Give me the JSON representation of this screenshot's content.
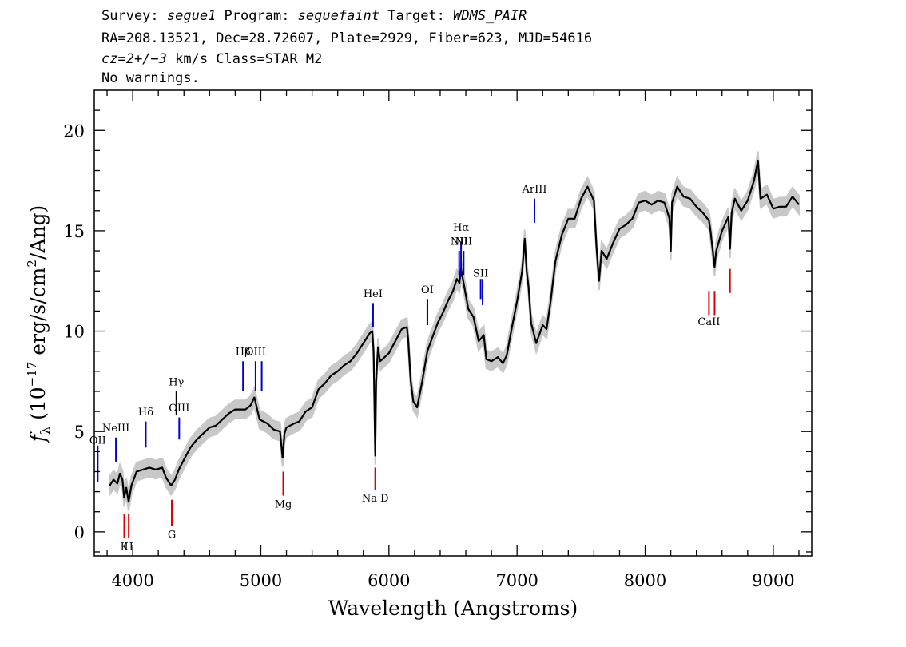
{
  "header": {
    "line1": {
      "survey_label": "Survey: ",
      "survey": "segue1",
      "program_label": " Program: ",
      "program": "seguefaint",
      "target_label": " Target: ",
      "target": "WDMS_PAIR"
    },
    "line2": "RA=208.13521, Dec=28.72607, Plate=2929, Fiber=623, MJD=54616",
    "line3": {
      "cz": "cz=2+/−3",
      "rest": " km/s Class=STAR M2"
    },
    "line4": "No warnings."
  },
  "chart_data": {
    "type": "line",
    "xlabel": "Wavelength (Angstroms)",
    "ylabel": {
      "f": "f",
      "sub": "λ",
      "p1": " (10",
      "exp1": "−17",
      "p2": " erg/s/cm",
      "exp2": "2",
      "p3": "/Ang)"
    },
    "xlim": [
      3700,
      9300
    ],
    "ylim": [
      -1.2,
      22.0
    ],
    "x_ticks": [
      4000,
      5000,
      6000,
      7000,
      8000,
      9000
    ],
    "x_tick_labels": [
      "4000",
      "5000",
      "6000",
      "7000",
      "8000",
      "9000"
    ],
    "y_ticks": [
      0,
      5,
      10,
      15,
      20
    ],
    "y_tick_labels": [
      "0",
      "5",
      "10",
      "15",
      "20"
    ],
    "series": [
      {
        "role": "flux",
        "color": "#000000",
        "x": [
          3820,
          3850,
          3880,
          3900,
          3920,
          3933,
          3950,
          3968,
          3990,
          4030,
          4080,
          4130,
          4180,
          4230,
          4260,
          4300,
          4330,
          4360,
          4400,
          4450,
          4500,
          4550,
          4600,
          4650,
          4700,
          4750,
          4800,
          4850,
          4880,
          4920,
          4950,
          4990,
          5050,
          5100,
          5150,
          5170,
          5185,
          5200,
          5260,
          5300,
          5350,
          5400,
          5450,
          5500,
          5550,
          5600,
          5650,
          5700,
          5750,
          5800,
          5850,
          5870,
          5880,
          5893,
          5900,
          5915,
          5930,
          5950,
          6000,
          6050,
          6100,
          6140,
          6150,
          6170,
          6190,
          6220,
          6260,
          6300,
          6340,
          6380,
          6420,
          6460,
          6500,
          6530,
          6550,
          6563,
          6580,
          6620,
          6660,
          6700,
          6740,
          6760,
          6800,
          6850,
          6890,
          6920,
          6960,
          7000,
          7040,
          7060,
          7075,
          7090,
          7110,
          7150,
          7200,
          7230,
          7260,
          7300,
          7350,
          7400,
          7450,
          7500,
          7550,
          7600,
          7620,
          7640,
          7660,
          7700,
          7750,
          7800,
          7850,
          7900,
          7950,
          8000,
          8050,
          8100,
          8150,
          8190,
          8200,
          8210,
          8250,
          8300,
          8350,
          8400,
          8450,
          8498,
          8510,
          8542,
          8555,
          8600,
          8650,
          8662,
          8675,
          8700,
          8750,
          8800,
          8850,
          8880,
          8900,
          8950,
          9000,
          9050,
          9100,
          9150,
          9200
        ],
        "y": [
          2.3,
          2.6,
          2.4,
          2.9,
          2.6,
          1.7,
          2.2,
          1.5,
          2.3,
          3.0,
          3.1,
          3.2,
          3.1,
          3.2,
          2.7,
          2.3,
          2.6,
          3.1,
          3.6,
          4.2,
          4.6,
          4.9,
          5.2,
          5.3,
          5.6,
          5.9,
          6.1,
          6.1,
          6.1,
          6.3,
          6.7,
          5.6,
          5.4,
          5.1,
          5.0,
          3.7,
          4.9,
          5.2,
          5.4,
          5.5,
          6.0,
          6.2,
          7.1,
          7.4,
          7.8,
          8.0,
          8.3,
          8.5,
          8.9,
          9.4,
          9.9,
          10.0,
          9.0,
          3.8,
          7.5,
          9.2,
          8.5,
          8.6,
          8.9,
          9.5,
          10.1,
          10.2,
          9.6,
          7.5,
          6.5,
          6.2,
          7.5,
          9.0,
          9.7,
          10.4,
          10.9,
          11.5,
          12.0,
          12.6,
          12.4,
          13.1,
          12.5,
          11.1,
          10.7,
          9.5,
          9.8,
          8.6,
          8.5,
          8.7,
          8.4,
          8.8,
          10.2,
          11.5,
          13.0,
          14.6,
          13.0,
          12.2,
          10.4,
          9.4,
          10.3,
          10.1,
          11.4,
          13.5,
          14.8,
          15.6,
          15.6,
          16.6,
          17.2,
          16.5,
          14.2,
          12.5,
          14.0,
          13.6,
          14.4,
          15.1,
          15.3,
          15.6,
          16.4,
          16.5,
          16.3,
          16.5,
          16.4,
          15.6,
          14.0,
          16.4,
          17.2,
          16.7,
          16.6,
          16.2,
          15.9,
          15.5,
          15.0,
          13.2,
          14.0,
          15.0,
          15.7,
          14.1,
          15.9,
          16.6,
          16.0,
          16.5,
          17.5,
          18.5,
          16.6,
          16.8,
          16.1,
          16.2,
          16.2,
          16.7,
          16.3
        ]
      }
    ],
    "spectral_lines": [
      {
        "label": "OII",
        "wavelength": 3727,
        "color": "#0000cc",
        "line_y_top": 4.3,
        "line_y_bottom": 2.5,
        "label_y": 4.4
      },
      {
        "label": "NeIII",
        "wavelength": 3869,
        "color": "#0000cc",
        "line_y_top": 4.7,
        "line_y_bottom": 3.5,
        "label_y": 5.0
      },
      {
        "label": "K",
        "wavelength": 3934,
        "color": "#dd0000",
        "line_y_top": 0.9,
        "line_y_bottom": -0.3,
        "label_y": -0.9
      },
      {
        "label": "H",
        "wavelength": 3969,
        "color": "#dd0000",
        "line_y_top": 0.9,
        "line_y_bottom": -0.3,
        "label_y": -0.9
      },
      {
        "label": "Hδ",
        "wavelength": 4102,
        "color": "#0000cc",
        "line_y_top": 5.5,
        "line_y_bottom": 4.2,
        "label_y": 5.8
      },
      {
        "label": "G",
        "wavelength": 4305,
        "color": "#dd0000",
        "line_y_top": 1.6,
        "line_y_bottom": 0.3,
        "label_y": -0.3
      },
      {
        "label": "Hγ",
        "wavelength": 4341,
        "color": "#000000",
        "line_y_top": 7.0,
        "line_y_bottom": 5.8,
        "label_y": 7.3
      },
      {
        "label": "OIII",
        "wavelength": 4363,
        "color": "#0000cc",
        "line_y_top": 5.7,
        "line_y_bottom": 4.6,
        "label_y": 6.0
      },
      {
        "label": "Hβ",
        "wavelength": 4861,
        "color": "#0000cc",
        "line_y_top": 8.5,
        "line_y_bottom": 7.0,
        "label_y": 8.8
      },
      {
        "label": "OIII",
        "wavelength": 4959,
        "color": "#0000cc",
        "line_y_top": 8.5,
        "line_y_bottom": 7.0,
        "label_y": 8.8
      },
      {
        "label": "",
        "wavelength": 5007,
        "color": "#0000cc",
        "line_y_top": 8.5,
        "line_y_bottom": 7.0
      },
      {
        "label": "Mg",
        "wavelength": 5175,
        "color": "#dd0000",
        "line_y_top": 3.0,
        "line_y_bottom": 1.8,
        "label_y": 1.2
      },
      {
        "label": "HeI",
        "wavelength": 5876,
        "color": "#0000cc",
        "line_y_top": 11.4,
        "line_y_bottom": 10.2,
        "label_y": 11.7
      },
      {
        "label": "Na D",
        "wavelength": 5893,
        "color": "#dd0000",
        "line_y_top": 3.2,
        "line_y_bottom": 2.1,
        "label_y": 1.5
      },
      {
        "label": "OI",
        "wavelength": 6300,
        "color": "#000000",
        "line_y_top": 11.6,
        "line_y_bottom": 10.3,
        "label_y": 11.9
      },
      {
        "label": "NII",
        "wavelength": 6548,
        "color": "#0000cc",
        "line_y_top": 14.0,
        "line_y_bottom": 12.8,
        "label_y": 14.3
      },
      {
        "label": "Hα",
        "wavelength": 6563,
        "color": "#0000cc",
        "line_y_top": 14.4,
        "line_y_bottom": 12.7,
        "label_y": 15.0
      },
      {
        "label": "NII",
        "wavelength": 6583,
        "color": "#0000cc",
        "line_y_top": 14.0,
        "line_y_bottom": 12.8,
        "label_y": 14.3
      },
      {
        "label": "SII",
        "wavelength": 6716,
        "color": "#0000cc",
        "line_y_top": 12.6,
        "line_y_bottom": 11.6,
        "label_y": 12.7
      },
      {
        "label": "",
        "wavelength": 6731,
        "color": "#0000cc",
        "line_y_top": 12.6,
        "line_y_bottom": 11.3
      },
      {
        "label": "ArIII",
        "wavelength": 7136,
        "color": "#0000cc",
        "line_y_top": 16.6,
        "line_y_bottom": 15.4,
        "label_y": 16.9
      },
      {
        "label": "CaII",
        "wavelength": 8498,
        "color": "#dd0000",
        "line_y_top": 12.0,
        "line_y_bottom": 10.8,
        "label_y": 10.3
      },
      {
        "label": "",
        "wavelength": 8542,
        "color": "#dd0000",
        "line_y_top": 12.0,
        "line_y_bottom": 10.8
      },
      {
        "label": "",
        "wavelength": 8662,
        "color": "#dd0000",
        "line_y_top": 13.1,
        "line_y_bottom": 11.9
      }
    ],
    "grid": false,
    "legend": "none"
  }
}
